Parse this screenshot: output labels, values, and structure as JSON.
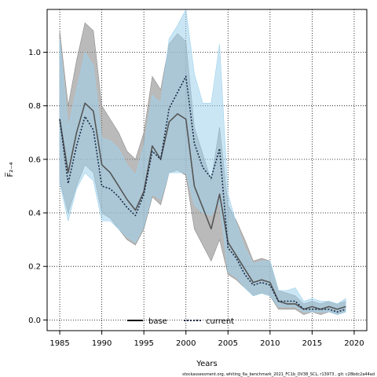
{
  "chart_data": {
    "type": "line",
    "xlabel": "Years",
    "ylabel": "F̅₂₋₄",
    "xlim": [
      1983.5,
      2021.5
    ],
    "ylim": [
      -0.04,
      1.16
    ],
    "xticks": [
      "1985",
      "1990",
      "1995",
      "2000",
      "2005",
      "2010",
      "2015",
      "2020"
    ],
    "yticks": [
      "0.0",
      "0.2",
      "0.4",
      "0.6",
      "0.8",
      "1.0"
    ],
    "grid": true,
    "legend_position": "bottom-center",
    "footer": "stockassessment.org, whiting_6a_benchmark_2021_FC1b_OV38_SCL, r13973 , git: c28bdc2a44ad",
    "x": [
      1985,
      1986,
      1987,
      1988,
      1989,
      1990,
      1991,
      1992,
      1993,
      1994,
      1995,
      1996,
      1997,
      1998,
      1999,
      2000,
      2001,
      2002,
      2003,
      2004,
      2005,
      2006,
      2007,
      2008,
      2009,
      2010,
      2011,
      2012,
      2013,
      2014,
      2015,
      2016,
      2017,
      2018,
      2019
    ],
    "series": [
      {
        "name": "base",
        "color": "#555555",
        "band_color": "#8c8c8c",
        "line_style": "solid",
        "values": [
          0.75,
          0.55,
          0.7,
          0.81,
          0.78,
          0.58,
          0.55,
          0.5,
          0.45,
          0.41,
          0.48,
          0.65,
          0.6,
          0.74,
          0.77,
          0.75,
          0.5,
          0.42,
          0.34,
          0.47,
          0.29,
          0.24,
          0.19,
          0.14,
          0.15,
          0.14,
          0.07,
          0.06,
          0.06,
          0.04,
          0.05,
          0.04,
          0.05,
          0.04,
          0.05
        ],
        "lower": [
          0.52,
          0.4,
          0.5,
          0.58,
          0.55,
          0.4,
          0.38,
          0.34,
          0.3,
          0.28,
          0.34,
          0.46,
          0.43,
          0.55,
          0.56,
          0.54,
          0.34,
          0.28,
          0.22,
          0.3,
          0.17,
          0.15,
          0.12,
          0.09,
          0.1,
          0.09,
          0.04,
          0.04,
          0.04,
          0.02,
          0.03,
          0.02,
          0.03,
          0.02,
          0.03
        ],
        "upper": [
          1.08,
          0.8,
          0.97,
          1.11,
          1.08,
          0.8,
          0.75,
          0.7,
          0.63,
          0.6,
          0.7,
          0.91,
          0.86,
          1.03,
          1.07,
          1.04,
          0.72,
          0.62,
          0.52,
          0.72,
          0.43,
          0.37,
          0.3,
          0.22,
          0.23,
          0.22,
          0.11,
          0.1,
          0.09,
          0.06,
          0.07,
          0.06,
          0.07,
          0.06,
          0.07
        ]
      },
      {
        "name": "current",
        "color": "#1a2a44",
        "band_color": "#9ed2ec",
        "line_style": "dotted",
        "values": [
          0.75,
          0.51,
          0.65,
          0.76,
          0.71,
          0.5,
          0.49,
          0.46,
          0.42,
          0.39,
          0.47,
          0.63,
          0.6,
          0.79,
          0.85,
          0.91,
          0.66,
          0.57,
          0.53,
          0.64,
          0.27,
          0.23,
          0.17,
          0.13,
          0.14,
          0.13,
          0.07,
          0.07,
          0.07,
          0.04,
          0.04,
          0.04,
          0.04,
          0.03,
          0.04
        ],
        "lower": [
          0.51,
          0.37,
          0.49,
          0.55,
          0.52,
          0.37,
          0.37,
          0.34,
          0.31,
          0.29,
          0.35,
          0.47,
          0.45,
          0.55,
          0.55,
          0.55,
          0.43,
          0.4,
          0.39,
          0.44,
          0.18,
          0.16,
          0.12,
          0.09,
          0.1,
          0.09,
          0.05,
          0.05,
          0.05,
          0.03,
          0.03,
          0.03,
          0.03,
          0.02,
          0.03
        ],
        "upper": [
          1.05,
          0.72,
          0.86,
          1.0,
          0.95,
          0.68,
          0.67,
          0.64,
          0.58,
          0.54,
          0.65,
          0.84,
          0.81,
          1.05,
          1.1,
          1.16,
          0.92,
          0.81,
          0.81,
          1.03,
          0.47,
          0.36,
          0.27,
          0.21,
          0.22,
          0.22,
          0.11,
          0.11,
          0.12,
          0.07,
          0.08,
          0.07,
          0.07,
          0.06,
          0.08
        ]
      }
    ]
  }
}
